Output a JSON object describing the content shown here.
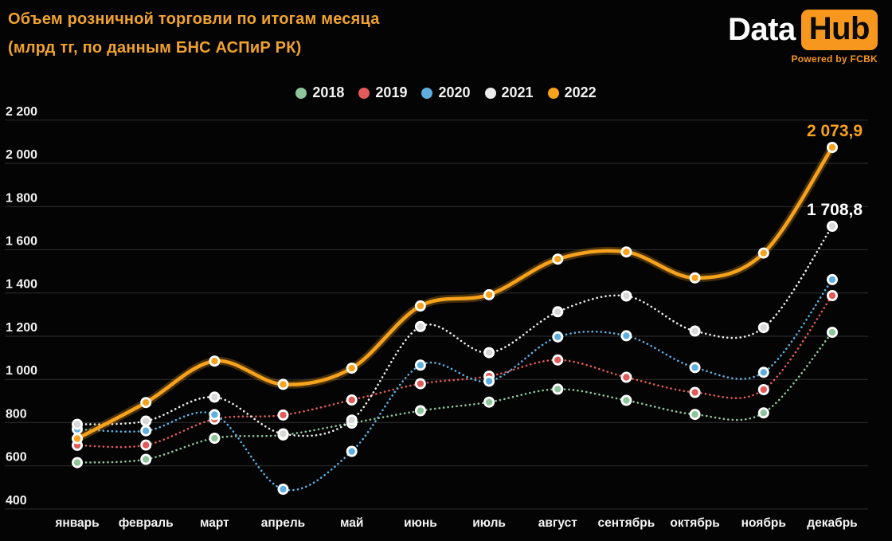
{
  "header": {
    "title_line1": "Объем розничной торговли по итогам месяца",
    "title_line2": "(млрд тг, по данным БНС АСПиР РК)",
    "logo": {
      "part1": "Data",
      "part2": "Hub",
      "tagline": "Powered by FCBK"
    }
  },
  "colors": {
    "background": "#040404",
    "title": "#f0a22e",
    "gridline": "#2f2f2f",
    "axis_text": "#f2f2f2",
    "logo_badge": "#f7971d",
    "marker_ring": "#ffffff"
  },
  "chart_data": {
    "type": "line",
    "title": "Объем розничной торговли по итогам месяца (млрд тг, по данным БНС АСПиР РК)",
    "categories": [
      "январь",
      "февраль",
      "март",
      "апрель",
      "май",
      "июнь",
      "июль",
      "август",
      "сентябрь",
      "октябрь",
      "ноябрь",
      "декабрь"
    ],
    "series": [
      {
        "name": "2018",
        "color": "#8ec49a",
        "style": "dotted",
        "values": [
          615,
          630,
          728,
          743,
          798,
          855,
          895,
          955,
          903,
          838,
          845,
          1218
        ]
      },
      {
        "name": "2019",
        "color": "#e25a5a",
        "style": "dotted",
        "values": [
          695,
          696,
          816,
          835,
          905,
          980,
          1015,
          1090,
          1010,
          940,
          953,
          1388
        ]
      },
      {
        "name": "2020",
        "color": "#5eafe0",
        "style": "dotted",
        "values": [
          770,
          762,
          837,
          492,
          667,
          1066,
          992,
          1197,
          1202,
          1055,
          1033,
          1462
        ]
      },
      {
        "name": "2021",
        "color": "#ececec",
        "style": "dotted",
        "values": [
          792,
          807,
          918,
          748,
          812,
          1245,
          1124,
          1313,
          1386,
          1224,
          1240,
          1708.8
        ]
      },
      {
        "name": "2022",
        "color": "#f6a21c",
        "style": "solid",
        "values": [
          726,
          893,
          1085,
          977,
          1052,
          1340,
          1392,
          1557,
          1590,
          1470,
          1585,
          2073.9
        ]
      }
    ],
    "xlabel": "",
    "ylabel": "",
    "ylim": [
      400,
      2200
    ],
    "ytick_step": 200,
    "grid": true,
    "legend_position": "top",
    "annotations": [
      {
        "series": "2022",
        "month_index": 11,
        "label": "2 073,9",
        "color": "#f6a21c"
      },
      {
        "series": "2021",
        "month_index": 11,
        "label": "1 708,8",
        "color": "#ffffff"
      }
    ]
  }
}
